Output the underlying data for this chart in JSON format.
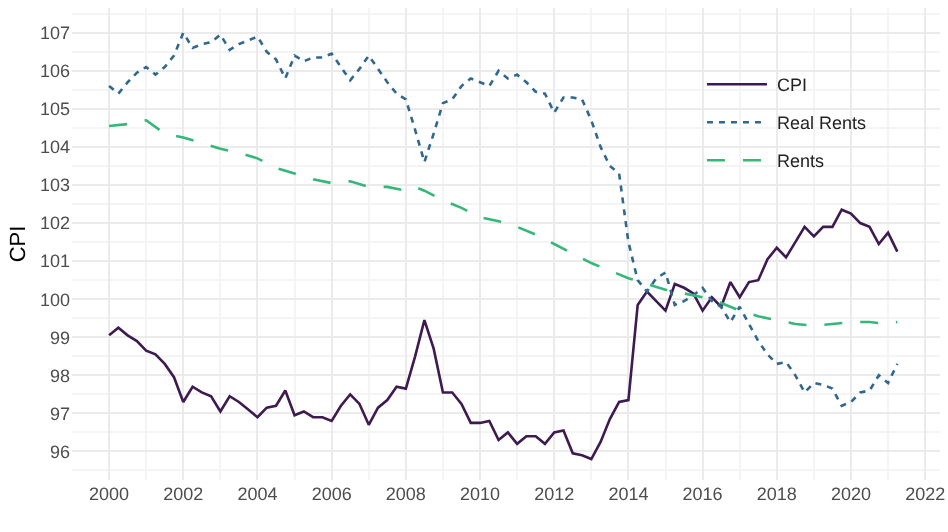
{
  "chart_data": {
    "type": "line",
    "ylabel": "CPI",
    "series": [
      {
        "name": "CPI",
        "color": "#3d1a4f",
        "line_style": "solid",
        "x": [
          2000,
          2000.25,
          2000.5,
          2000.75,
          2001,
          2001.25,
          2001.5,
          2001.75,
          2002,
          2002.25,
          2002.5,
          2002.75,
          2003,
          2003.25,
          2003.5,
          2003.75,
          2004,
          2004.25,
          2004.5,
          2004.75,
          2005,
          2005.25,
          2005.5,
          2005.75,
          2006,
          2006.25,
          2006.5,
          2006.75,
          2007,
          2007.25,
          2007.5,
          2007.75,
          2008,
          2008.25,
          2008.5,
          2008.75,
          2009,
          2009.25,
          2009.5,
          2009.75,
          2010,
          2010.25,
          2010.5,
          2010.75,
          2011,
          2011.25,
          2011.5,
          2011.75,
          2012,
          2012.25,
          2012.5,
          2012.75,
          2013,
          2013.25,
          2013.5,
          2013.75,
          2014,
          2014.25,
          2014.5,
          2014.75,
          2015,
          2015.25,
          2015.5,
          2015.75,
          2016,
          2016.25,
          2016.5,
          2016.75,
          2017,
          2017.25,
          2017.5,
          2017.75,
          2018,
          2018.25,
          2018.5,
          2018.75,
          2019,
          2019.25,
          2019.5,
          2019.75,
          2020,
          2020.25,
          2020.5,
          2020.75,
          2021,
          2021.25
        ],
        "values": [
          99.05,
          99.25,
          99.05,
          98.9,
          98.65,
          98.55,
          98.3,
          97.95,
          97.3,
          97.7,
          97.55,
          97.45,
          97.05,
          97.45,
          97.3,
          97.1,
          96.9,
          97.15,
          97.2,
          97.6,
          96.95,
          97.05,
          96.9,
          96.9,
          96.8,
          97.2,
          97.5,
          97.25,
          96.7,
          97.15,
          97.35,
          97.7,
          97.65,
          98.5,
          99.45,
          98.7,
          97.55,
          97.55,
          97.25,
          96.75,
          96.75,
          96.8,
          96.3,
          96.5,
          96.2,
          96.4,
          96.4,
          96.2,
          96.5,
          96.55,
          95.95,
          95.9,
          95.8,
          96.25,
          96.85,
          97.3,
          97.35,
          99.85,
          100.2,
          99.95,
          99.7,
          100.4,
          100.3,
          100.15,
          99.7,
          100.05,
          99.8,
          100.45,
          100.05,
          100.45,
          100.5,
          101.05,
          101.35,
          101.1,
          101.5,
          101.9,
          101.65,
          101.9,
          101.9,
          102.35,
          102.25,
          102.0,
          101.9,
          101.45,
          101.75,
          101.25
        ]
      },
      {
        "name": "Real Rents",
        "color": "#31688e",
        "line_style": "dotted",
        "x": [
          2000,
          2000.25,
          2000.5,
          2000.75,
          2001,
          2001.25,
          2001.5,
          2001.75,
          2002,
          2002.25,
          2002.5,
          2002.75,
          2003,
          2003.25,
          2003.5,
          2003.75,
          2004,
          2004.25,
          2004.5,
          2004.75,
          2005,
          2005.25,
          2005.5,
          2005.75,
          2006,
          2006.25,
          2006.5,
          2006.75,
          2007,
          2007.25,
          2007.5,
          2007.75,
          2008,
          2008.25,
          2008.5,
          2008.75,
          2009,
          2009.25,
          2009.5,
          2009.75,
          2010,
          2010.25,
          2010.5,
          2010.75,
          2011,
          2011.25,
          2011.5,
          2011.75,
          2012,
          2012.25,
          2012.5,
          2012.75,
          2013,
          2013.25,
          2013.5,
          2013.75,
          2014,
          2014.25,
          2014.5,
          2014.75,
          2015,
          2015.25,
          2015.5,
          2015.75,
          2016,
          2016.25,
          2016.5,
          2016.75,
          2017,
          2017.25,
          2017.5,
          2017.75,
          2018,
          2018.25,
          2018.5,
          2018.75,
          2019,
          2019.25,
          2019.5,
          2019.75,
          2020,
          2020.25,
          2020.5,
          2020.75,
          2021,
          2021.25
        ],
        "values": [
          105.6,
          105.4,
          105.7,
          105.95,
          106.1,
          105.9,
          106.1,
          106.4,
          107.0,
          106.6,
          106.7,
          106.75,
          106.95,
          106.55,
          106.7,
          106.8,
          106.9,
          106.5,
          106.3,
          105.8,
          106.4,
          106.25,
          106.35,
          106.35,
          106.45,
          106.1,
          105.75,
          106.05,
          106.4,
          106.05,
          105.7,
          105.4,
          105.25,
          104.45,
          103.6,
          104.35,
          105.15,
          105.25,
          105.6,
          105.8,
          105.7,
          105.6,
          106.0,
          105.8,
          105.9,
          105.7,
          105.45,
          105.4,
          104.9,
          105.3,
          105.3,
          105.25,
          104.7,
          104.0,
          103.5,
          103.3,
          101.5,
          100.5,
          100.2,
          100.55,
          100.7,
          99.85,
          99.95,
          100.1,
          100.3,
          99.95,
          99.8,
          99.4,
          99.8,
          99.35,
          98.9,
          98.55,
          98.3,
          98.35,
          98.0,
          97.55,
          97.8,
          97.75,
          97.65,
          97.2,
          97.3,
          97.55,
          97.6,
          98.0,
          97.8,
          98.3
        ]
      },
      {
        "name": "Rents",
        "color": "#35b779",
        "line_style": "dashed",
        "x": [
          2000,
          2000.5,
          2001,
          2001.5,
          2002,
          2002.5,
          2003,
          2003.5,
          2004,
          2004.5,
          2005,
          2005.5,
          2006,
          2006.5,
          2007,
          2007.5,
          2008,
          2008.25,
          2008.5,
          2009,
          2009.5,
          2010,
          2010.5,
          2011,
          2011.5,
          2012,
          2012.5,
          2013,
          2013.5,
          2014,
          2014.5,
          2015,
          2015.5,
          2016,
          2016.5,
          2017,
          2017.5,
          2018,
          2018.5,
          2019,
          2019.5,
          2020,
          2020.5,
          2021,
          2021.25
        ],
        "values": [
          104.55,
          104.6,
          104.7,
          104.35,
          104.25,
          104.1,
          103.95,
          103.85,
          103.7,
          103.45,
          103.3,
          103.15,
          103.05,
          103.1,
          102.95,
          102.95,
          102.85,
          102.95,
          102.85,
          102.6,
          102.4,
          102.15,
          102.05,
          101.9,
          101.7,
          101.45,
          101.2,
          100.95,
          100.75,
          100.55,
          100.4,
          100.25,
          100.15,
          100.05,
          99.9,
          99.7,
          99.55,
          99.45,
          99.35,
          99.3,
          99.35,
          99.4,
          99.4,
          99.35,
          99.4
        ]
      }
    ],
    "xlim": [
      1999.0,
      2022.4
    ],
    "xticks": [
      2000,
      2002,
      2004,
      2006,
      2008,
      2010,
      2012,
      2014,
      2016,
      2018,
      2020,
      2022
    ],
    "ylim": [
      95.25,
      107.65
    ],
    "yticks": [
      96,
      97,
      98,
      99,
      100,
      101,
      102,
      103,
      104,
      105,
      106,
      107
    ],
    "grid": true,
    "legend": "top right"
  }
}
